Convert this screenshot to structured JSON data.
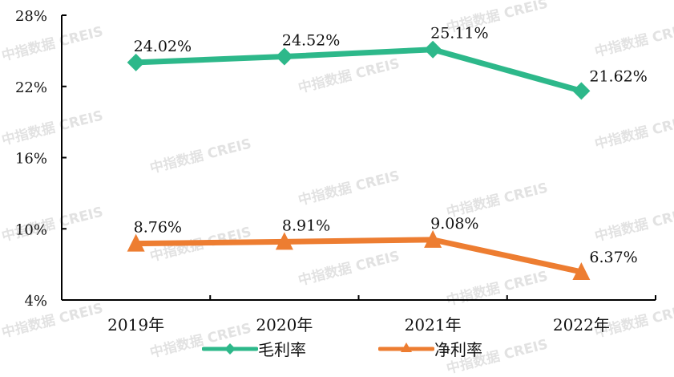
{
  "chart_data": {
    "type": "line",
    "title": "",
    "xlabel": "",
    "ylabel": "",
    "categories": [
      "2019年",
      "2020年",
      "2021年",
      "2022年"
    ],
    "series": [
      {
        "name": "毛利率",
        "values": [
          24.02,
          24.52,
          25.11,
          21.62
        ],
        "labels": [
          "24.02%",
          "24.52%",
          "25.11%",
          "21.62%"
        ],
        "color": "#2db88a",
        "marker": "diamond"
      },
      {
        "name": "净利率",
        "values": [
          8.76,
          8.91,
          9.08,
          6.37
        ],
        "labels": [
          "8.76%",
          "8.91%",
          "9.08%",
          "6.37%"
        ],
        "color": "#ed7d31",
        "marker": "triangle"
      }
    ],
    "ylim": [
      4,
      28
    ],
    "yticks": [
      4,
      10,
      16,
      22,
      28
    ],
    "ytick_labels": [
      "4%",
      "10%",
      "16%",
      "22%",
      "28%"
    ],
    "grid": false,
    "legend_position": "bottom"
  },
  "watermark": "中指数据 CREIS",
  "legend": [
    {
      "label": "毛利率"
    },
    {
      "label": "净利率"
    }
  ]
}
